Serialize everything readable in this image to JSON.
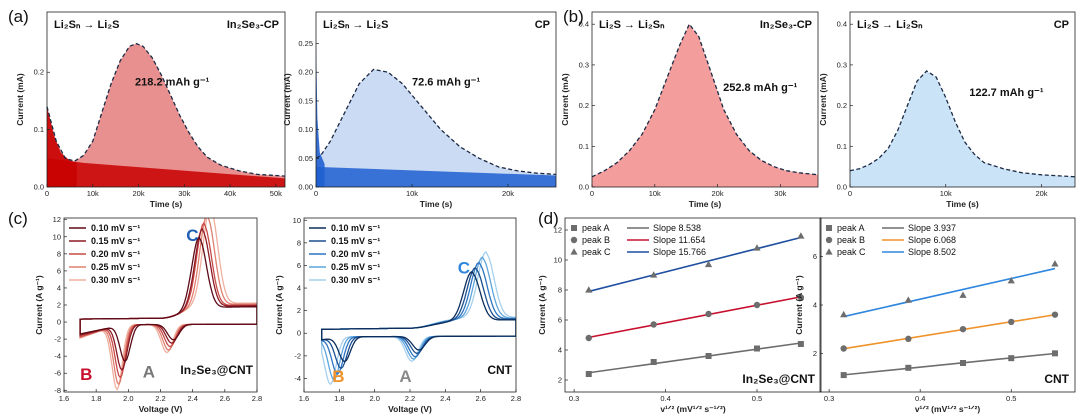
{
  "chart_data": [
    {
      "id": "a1",
      "type": "area",
      "panel_label": "(a)",
      "title": "Li₂Sₙ → Li₂S",
      "tag": "In₂Se₃-CP",
      "annotation": "218.2 mAh g⁻¹",
      "xlabel": "Time (s)",
      "ylabel": "Current (mA)",
      "xlim": [
        0,
        52000
      ],
      "ylim": [
        0,
        0.305
      ],
      "xticks": [
        0,
        10000,
        20000,
        30000,
        40000,
        50000
      ],
      "xtick_labels": [
        "0",
        "10k",
        "20k",
        "30k",
        "40k",
        "50k"
      ],
      "yticks": [
        0,
        0.1,
        0.2
      ],
      "ytick_labels": [
        "0.0",
        "0.1",
        "0.2"
      ],
      "fill": "#e06a6a",
      "base_fill": "#c90000",
      "curve": [
        [
          0,
          0.14
        ],
        [
          2000,
          0.08
        ],
        [
          4000,
          0.05
        ],
        [
          6000,
          0.045
        ],
        [
          8000,
          0.055
        ],
        [
          10000,
          0.08
        ],
        [
          12000,
          0.13
        ],
        [
          14000,
          0.18
        ],
        [
          16000,
          0.22
        ],
        [
          18000,
          0.245
        ],
        [
          19500,
          0.25
        ],
        [
          21000,
          0.245
        ],
        [
          23000,
          0.225
        ],
        [
          25000,
          0.195
        ],
        [
          27000,
          0.16
        ],
        [
          29000,
          0.125
        ],
        [
          31000,
          0.095
        ],
        [
          33000,
          0.07
        ],
        [
          35000,
          0.052
        ],
        [
          38000,
          0.038
        ],
        [
          42000,
          0.028
        ],
        [
          46000,
          0.022
        ],
        [
          50000,
          0.02
        ],
        [
          52000,
          0.019
        ]
      ],
      "baseline": [
        [
          0,
          0.05
        ],
        [
          8000,
          0.042
        ],
        [
          52000,
          0.015
        ]
      ],
      "decay": [
        [
          0,
          0.14
        ],
        [
          1500,
          0.09
        ],
        [
          3000,
          0.06
        ],
        [
          5000,
          0.046
        ],
        [
          6500,
          0.042
        ]
      ]
    },
    {
      "id": "a2",
      "type": "area",
      "panel_label": "",
      "title": "Li₂Sₙ → Li₂S",
      "tag": "CP",
      "annotation": "72.6 mAh g⁻¹",
      "xlabel": "Time (s)",
      "ylabel": "Current (mA)",
      "xlim": [
        0,
        25000
      ],
      "ylim": [
        0,
        0.305
      ],
      "xticks": [
        0,
        10000,
        20000
      ],
      "xtick_labels": [
        "0",
        "10k",
        "20k"
      ],
      "yticks": [
        0,
        0.05,
        0.1,
        0.15,
        0.2,
        0.25
      ],
      "ytick_labels": [
        "0.00",
        "0.05",
        "0.10",
        "0.15",
        "0.20",
        "0.25"
      ],
      "fill": "#b9cff0",
      "base_fill": "#1f5fd0",
      "curve": [
        [
          0,
          0.05
        ],
        [
          500,
          0.055
        ],
        [
          1500,
          0.08
        ],
        [
          3000,
          0.13
        ],
        [
          4500,
          0.18
        ],
        [
          6000,
          0.205
        ],
        [
          7500,
          0.2
        ],
        [
          9000,
          0.18
        ],
        [
          11000,
          0.14
        ],
        [
          13000,
          0.1
        ],
        [
          15000,
          0.07
        ],
        [
          17000,
          0.05
        ],
        [
          19000,
          0.035
        ],
        [
          21000,
          0.028
        ],
        [
          23000,
          0.024
        ],
        [
          25000,
          0.022
        ]
      ],
      "baseline": [
        [
          0,
          0.035
        ],
        [
          25000,
          0.02
        ]
      ],
      "decay": [
        [
          0,
          0.26
        ],
        [
          150,
          0.12
        ],
        [
          400,
          0.06
        ],
        [
          900,
          0.04
        ]
      ]
    },
    {
      "id": "b1",
      "type": "area",
      "panel_label": "(b)",
      "title": "Li₂S → Li₂Sₙ",
      "tag": "In₂Se₃-CP",
      "annotation": "252.8 mAh g⁻¹",
      "xlabel": "Time (s)",
      "ylabel": "Current (mA)",
      "xlim": [
        0,
        36000
      ],
      "ylim": [
        0,
        0.43
      ],
      "xticks": [
        0,
        10000,
        20000,
        30000
      ],
      "xtick_labels": [
        "0",
        "10k",
        "20k",
        "30k"
      ],
      "yticks": [
        0,
        0.1,
        0.2,
        0.3,
        0.4
      ],
      "ytick_labels": [
        "0.0",
        "0.1",
        "0.2",
        "0.3",
        "0.4"
      ],
      "fill": "#f07c7c",
      "curve": [
        [
          0,
          0.025
        ],
        [
          2000,
          0.04
        ],
        [
          4000,
          0.06
        ],
        [
          6000,
          0.09
        ],
        [
          8000,
          0.13
        ],
        [
          10000,
          0.19
        ],
        [
          12000,
          0.27
        ],
        [
          14000,
          0.35
        ],
        [
          15500,
          0.4
        ],
        [
          17000,
          0.37
        ],
        [
          19000,
          0.28
        ],
        [
          21000,
          0.19
        ],
        [
          23000,
          0.13
        ],
        [
          25000,
          0.09
        ],
        [
          27000,
          0.065
        ],
        [
          29000,
          0.05
        ],
        [
          31000,
          0.04
        ],
        [
          33000,
          0.035
        ],
        [
          36000,
          0.03
        ]
      ]
    },
    {
      "id": "b2",
      "type": "area",
      "panel_label": "",
      "title": "Li₂S → Li₂Sₙ",
      "tag": "CP",
      "annotation": "122.7 mAh g⁻¹",
      "xlabel": "Time (s)",
      "ylabel": "Current (mA)",
      "xlim": [
        0,
        23500
      ],
      "ylim": [
        0,
        0.43
      ],
      "xticks": [
        0,
        10000,
        20000
      ],
      "xtick_labels": [
        "0",
        "10k",
        "20k"
      ],
      "yticks": [
        0,
        0.1,
        0.2,
        0.3,
        0.4
      ],
      "ytick_labels": [
        "0.0",
        "0.1",
        "0.2",
        "0.3",
        "0.4"
      ],
      "fill": "#b8daf4",
      "curve": [
        [
          0,
          0.04
        ],
        [
          1000,
          0.045
        ],
        [
          2000,
          0.055
        ],
        [
          3000,
          0.07
        ],
        [
          4000,
          0.095
        ],
        [
          5000,
          0.14
        ],
        [
          6000,
          0.2
        ],
        [
          7000,
          0.26
        ],
        [
          8000,
          0.285
        ],
        [
          9000,
          0.27
        ],
        [
          10000,
          0.22
        ],
        [
          11000,
          0.16
        ],
        [
          12000,
          0.11
        ],
        [
          13000,
          0.08
        ],
        [
          14000,
          0.06
        ],
        [
          16000,
          0.045
        ],
        [
          18000,
          0.035
        ],
        [
          20000,
          0.03
        ],
        [
          23500,
          0.025
        ]
      ]
    },
    {
      "id": "c1",
      "type": "line",
      "panel_label": "(c)",
      "xlabel": "Voltage (V)",
      "ylabel": "Current (A g⁻¹)",
      "xlim": [
        1.6,
        2.8
      ],
      "ylim": [
        -8.2,
        12.2
      ],
      "xticks": [
        1.6,
        1.8,
        2.0,
        2.2,
        2.4,
        2.6,
        2.8
      ],
      "xtick_labels": [
        "1.6",
        "1.8",
        "2.0",
        "2.2",
        "2.4",
        "2.6",
        "2.8"
      ],
      "yticks": [
        -8,
        -6,
        -4,
        -2,
        0,
        2,
        4,
        6,
        8,
        10,
        12
      ],
      "ytick_labels": [
        "-8",
        "-6",
        "-4",
        "-2",
        "0",
        "2",
        "4",
        "6",
        "8",
        "10",
        "12"
      ],
      "peak_labels": [
        {
          "text": "C",
          "color": "#1f5fb4",
          "x": 2.36,
          "y": 9.5
        },
        {
          "text": "B",
          "color": "#c8102e",
          "x": 1.7,
          "y": -6.8
        },
        {
          "text": "A",
          "color": "#777777",
          "x": 2.09,
          "y": -6.5
        }
      ],
      "tag": "In₂Se₃@CNT",
      "series": [
        {
          "name": "0.10 mV s⁻¹",
          "color": "#5e0a17",
          "v0": 2.43,
          "Cx": 2.44,
          "Ch": 8.4,
          "Bx": 1.98,
          "Bd": 4.3,
          "Ax": 2.28,
          "Ad": 1.8
        },
        {
          "name": "0.15 mV s⁻¹",
          "color": "#8c1a24",
          "v0": 2.44,
          "Cx": 2.46,
          "Ch": 9.2,
          "Bx": 1.96,
          "Bd": 5.3,
          "Ax": 2.27,
          "Ad": 2.2
        },
        {
          "name": "0.20 mV s⁻¹",
          "color": "#c84a47",
          "v0": 2.45,
          "Cx": 2.47,
          "Ch": 9.8,
          "Bx": 1.95,
          "Bd": 6.2,
          "Ax": 2.26,
          "Ad": 2.6
        },
        {
          "name": "0.25 mV s⁻¹",
          "color": "#e08070",
          "v0": 2.46,
          "Cx": 2.49,
          "Ch": 10.6,
          "Bx": 1.94,
          "Bd": 7.0,
          "Ax": 2.25,
          "Ad": 3.0
        },
        {
          "name": "0.30 mV s⁻¹",
          "color": "#f0b0a0",
          "v0": 2.47,
          "Cx": 2.51,
          "Ch": 11.4,
          "Bx": 1.93,
          "Bd": 7.6,
          "Ax": 2.24,
          "Ad": 3.3
        }
      ]
    },
    {
      "id": "c2",
      "type": "line",
      "panel_label": "",
      "xlabel": "Voltage (V)",
      "ylabel": "Current (A g⁻¹)",
      "xlim": [
        1.6,
        2.8
      ],
      "ylim": [
        -5.2,
        10.2
      ],
      "xticks": [
        1.6,
        1.8,
        2.0,
        2.2,
        2.4,
        2.6,
        2.8
      ],
      "xtick_labels": [
        "1.6",
        "1.8",
        "2.0",
        "2.2",
        "2.4",
        "2.6",
        "2.8"
      ],
      "yticks": [
        -4,
        -2,
        0,
        2,
        4,
        6,
        8,
        10
      ],
      "ytick_labels": [
        "-4",
        "-2",
        "0",
        "2",
        "4",
        "6",
        "8",
        "10"
      ],
      "peak_labels": [
        {
          "text": "C",
          "color": "#2e86de",
          "x": 2.47,
          "y": 5.3
        },
        {
          "text": "B",
          "color": "#f0922a",
          "x": 1.76,
          "y": -4.3
        },
        {
          "text": "A",
          "color": "#8a8a8a",
          "x": 2.14,
          "y": -4.3
        }
      ],
      "tag": "CNT",
      "series": [
        {
          "name": "0.10 mV s⁻¹",
          "color": "#0b2e5c",
          "v0": 2.52,
          "Cx": 2.55,
          "Ch": 4.3,
          "Bx": 1.83,
          "Bd": 2.2,
          "Ax": 2.25,
          "Ad": 1.2
        },
        {
          "name": "0.15 mV s⁻¹",
          "color": "#1a4f8f",
          "v0": 2.53,
          "Cx": 2.57,
          "Ch": 4.6,
          "Bx": 1.81,
          "Bd": 2.8,
          "Ax": 2.24,
          "Ad": 1.5
        },
        {
          "name": "0.20 mV s⁻¹",
          "color": "#2f74c0",
          "v0": 2.54,
          "Cx": 2.59,
          "Ch": 5.0,
          "Bx": 1.79,
          "Bd": 3.3,
          "Ax": 2.23,
          "Ad": 1.8
        },
        {
          "name": "0.25 mV s⁻¹",
          "color": "#5ea5dc",
          "v0": 2.55,
          "Cx": 2.61,
          "Ch": 5.4,
          "Bx": 1.77,
          "Bd": 3.8,
          "Ax": 2.22,
          "Ad": 2.0
        },
        {
          "name": "0.30 mV s⁻¹",
          "color": "#a6d0ee",
          "v0": 2.56,
          "Cx": 2.63,
          "Ch": 5.8,
          "Bx": 1.75,
          "Bd": 4.2,
          "Ax": 2.21,
          "Ad": 2.2
        }
      ]
    },
    {
      "id": "d1",
      "type": "scatter",
      "panel_label": "(d)",
      "xlabel": "v¹ᐟ² (mV¹ᐟ² s⁻¹ᐟ²)",
      "ylabel": "Current (A g⁻¹)",
      "xlim": [
        0.29,
        0.57
      ],
      "ylim": [
        1.2,
        12.8
      ],
      "xticks": [
        0.3,
        0.4,
        0.5
      ],
      "xtick_labels": [
        "0.3",
        "0.4",
        "0.5"
      ],
      "yticks": [
        2,
        4,
        6,
        8,
        10,
        12
      ],
      "ytick_labels": [
        "2",
        "4",
        "6",
        "8",
        "10",
        "12"
      ],
      "x": [
        0.316,
        0.387,
        0.447,
        0.5,
        0.548
      ],
      "tag": "In₂Se₃@CNT",
      "series": [
        {
          "name": "peak A",
          "slope_label": "Slope 8.538",
          "marker": "square",
          "marker_color": "#6d6d6d",
          "line_color": "#6d6d6d",
          "y": [
            2.4,
            3.2,
            3.6,
            4.1,
            4.4
          ]
        },
        {
          "name": "peak B",
          "slope_label": "Slope 11.654",
          "marker": "circle",
          "marker_color": "#6d6d6d",
          "line_color": "#c8102e",
          "y": [
            4.8,
            5.7,
            6.4,
            7.0,
            7.5
          ]
        },
        {
          "name": "peak C",
          "slope_label": "Slope 15.766",
          "marker": "triangle",
          "marker_color": "#6d6d6d",
          "line_color": "#1f4fa0",
          "y": [
            8.0,
            9.0,
            9.7,
            10.8,
            11.6
          ]
        }
      ]
    },
    {
      "id": "d2",
      "type": "scatter",
      "panel_label": "",
      "xlabel": "v¹ᐟ² (mV¹ᐟ² s⁻¹ᐟ²)",
      "ylabel": "Current (A g⁻¹)",
      "xlim": [
        0.29,
        0.57
      ],
      "ylim": [
        0.4,
        7.6
      ],
      "xticks": [
        0.3,
        0.4,
        0.5
      ],
      "xtick_labels": [
        "0.3",
        "0.4",
        "0.5"
      ],
      "yticks": [
        2,
        4,
        6
      ],
      "ytick_labels": [
        "2",
        "4",
        "6"
      ],
      "x": [
        0.316,
        0.387,
        0.447,
        0.5,
        0.548
      ],
      "tag": "CNT",
      "series": [
        {
          "name": "peak A",
          "slope_label": "Slope 3.937",
          "marker": "square",
          "marker_color": "#6d6d6d",
          "line_color": "#6d6d6d",
          "y": [
            1.1,
            1.4,
            1.6,
            1.8,
            2.0
          ]
        },
        {
          "name": "peak B",
          "slope_label": "Slope 6.068",
          "marker": "circle",
          "marker_color": "#6d6d6d",
          "line_color": "#f0922a",
          "y": [
            2.2,
            2.6,
            3.0,
            3.3,
            3.6
          ]
        },
        {
          "name": "peak C",
          "slope_label": "Slope 8.502",
          "marker": "triangle",
          "marker_color": "#6d6d6d",
          "line_color": "#2e86de",
          "y": [
            3.6,
            4.2,
            4.4,
            5.0,
            5.7
          ]
        }
      ]
    }
  ]
}
